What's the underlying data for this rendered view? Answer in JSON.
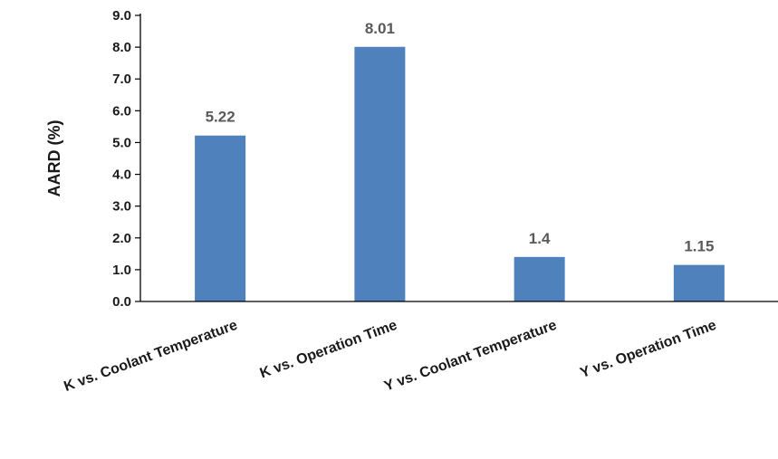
{
  "chart_data": {
    "type": "bar",
    "title": "",
    "xlabel": "",
    "ylabel": "AARD (%)",
    "ylim": [
      0,
      9
    ],
    "yticks": [
      "0.0",
      "1.0",
      "2.0",
      "3.0",
      "4.0",
      "5.0",
      "6.0",
      "7.0",
      "8.0",
      "9.0"
    ],
    "categories": [
      "K vs. Coolant Temperature",
      "K vs. Operation Time",
      "Y vs. Coolant Temperature",
      "Y vs. Operation Time"
    ],
    "values": [
      5.22,
      8.01,
      1.4,
      1.15
    ],
    "value_labels": [
      "5.22",
      "8.01",
      "1.4",
      "1.15"
    ],
    "grid": false,
    "legend": "none",
    "bar_color": "#4f81bd",
    "axis_color": "#000000"
  }
}
